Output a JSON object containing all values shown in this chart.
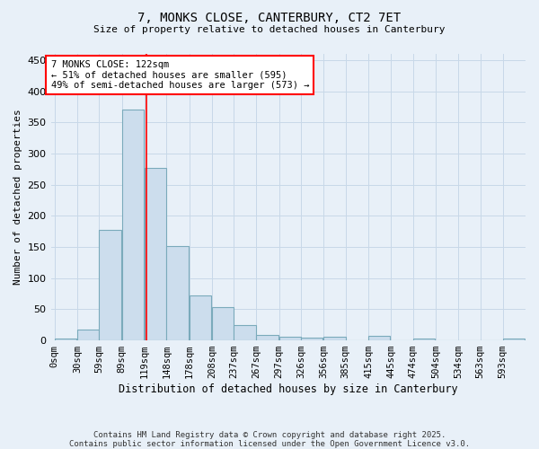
{
  "title": "7, MONKS CLOSE, CANTERBURY, CT2 7ET",
  "subtitle": "Size of property relative to detached houses in Canterbury",
  "xlabel": "Distribution of detached houses by size in Canterbury",
  "ylabel": "Number of detached properties",
  "bar_color": "#ccdded",
  "bar_edge_color": "#7aaabb",
  "bin_labels": [
    "0sqm",
    "30sqm",
    "59sqm",
    "89sqm",
    "119sqm",
    "148sqm",
    "178sqm",
    "208sqm",
    "237sqm",
    "267sqm",
    "297sqm",
    "326sqm",
    "356sqm",
    "385sqm",
    "415sqm",
    "445sqm",
    "474sqm",
    "504sqm",
    "534sqm",
    "563sqm",
    "593sqm"
  ],
  "bar_heights": [
    3,
    18,
    177,
    370,
    277,
    152,
    72,
    54,
    25,
    9,
    6,
    5,
    6,
    0,
    7,
    0,
    3,
    0,
    0,
    0,
    3
  ],
  "bin_starts": [
    0,
    30,
    59,
    89,
    119,
    148,
    178,
    208,
    237,
    267,
    297,
    326,
    356,
    385,
    415,
    445,
    474,
    504,
    534,
    563,
    593
  ],
  "bin_width": 29,
  "property_size": 122,
  "property_line_color": "red",
  "annotation_text_line1": "7 MONKS CLOSE: 122sqm",
  "annotation_text_line2": "← 51% of detached houses are smaller (595)",
  "annotation_text_line3": "49% of semi-detached houses are larger (573) →",
  "ylim": [
    0,
    460
  ],
  "yticks": [
    0,
    50,
    100,
    150,
    200,
    250,
    300,
    350,
    400,
    450
  ],
  "grid_color": "#c8d8e8",
  "background_color": "#e8f0f8",
  "footer_line1": "Contains HM Land Registry data © Crown copyright and database right 2025.",
  "footer_line2": "Contains public sector information licensed under the Open Government Licence v3.0."
}
